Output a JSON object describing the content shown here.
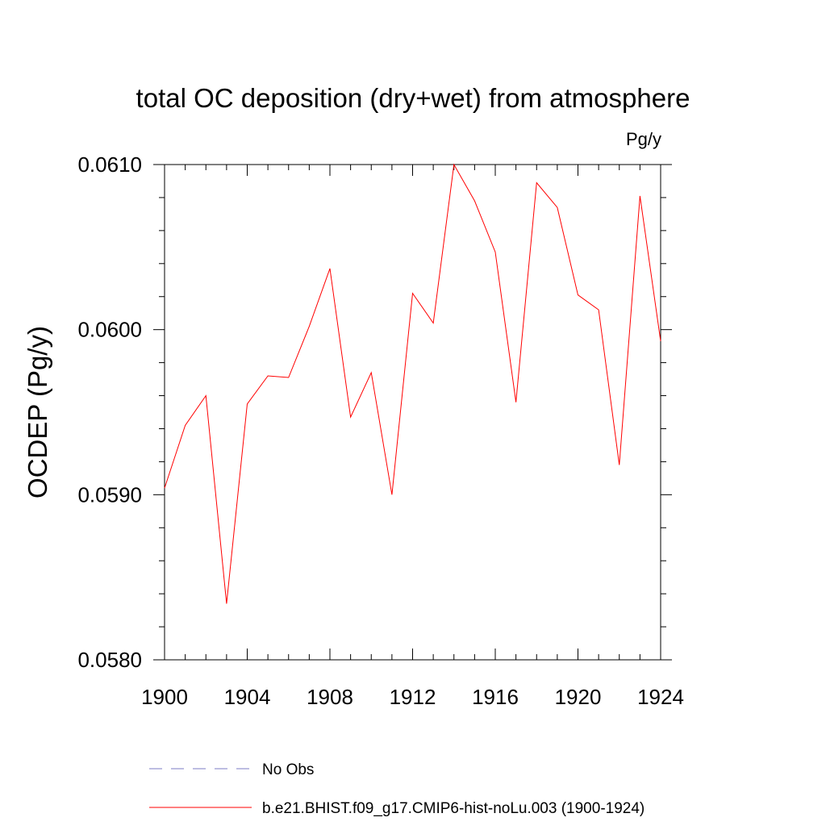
{
  "chart_data": {
    "type": "line",
    "title": "total OC deposition (dry+wet) from atmosphere",
    "units_label": "Pg/y",
    "ylabel": "OCDEP  (Pg/y)",
    "xlabel": "",
    "xlim": [
      1900,
      1924
    ],
    "ylim": [
      0.058,
      0.061
    ],
    "x_ticks": [
      1900,
      1904,
      1908,
      1912,
      1916,
      1920,
      1924
    ],
    "x_tick_labels": [
      "1900",
      "1904",
      "1908",
      "1912",
      "1916",
      "1920",
      "1924"
    ],
    "y_ticks": [
      0.058,
      0.059,
      0.06,
      0.061
    ],
    "y_tick_labels": [
      "0.0580",
      "0.0590",
      "0.0600",
      "0.0610"
    ],
    "grid": false,
    "legend_position": "bottom",
    "series": [
      {
        "name": "b.e21.BHIST.f09_g17.CMIP6-hist-noLu.003 (1900-1924)",
        "color": "#ff0000",
        "style": "solid",
        "x": [
          1900,
          1901,
          1902,
          1903,
          1904,
          1905,
          1906,
          1907,
          1908,
          1909,
          1910,
          1911,
          1912,
          1913,
          1914,
          1915,
          1916,
          1917,
          1918,
          1919,
          1920,
          1921,
          1922,
          1923,
          1924
        ],
        "values": [
          0.05904,
          0.05942,
          0.0596,
          0.05834,
          0.05955,
          0.05972,
          0.05971,
          0.06002,
          0.06037,
          0.05947,
          0.05974,
          0.059,
          0.06022,
          0.06004,
          0.061,
          0.06078,
          0.06047,
          0.05956,
          0.06089,
          0.06074,
          0.06021,
          0.06012,
          0.05918,
          0.06081,
          0.05993
        ]
      }
    ],
    "legend": [
      {
        "label": "No Obs",
        "color": "#7b7bc6",
        "style": "dashed"
      },
      {
        "label": "b.e21.BHIST.f09_g17.CMIP6-hist-noLu.003 (1900-1924)",
        "color": "#ff0000",
        "style": "solid"
      }
    ]
  }
}
